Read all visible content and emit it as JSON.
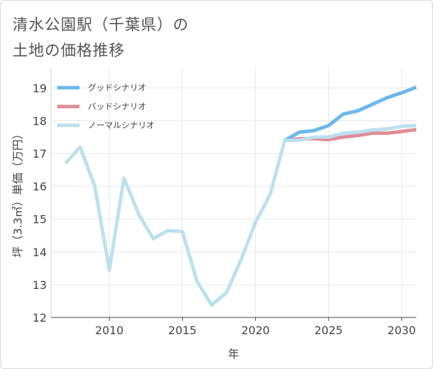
{
  "title": {
    "line1": "清水公園駅（千葉県）の",
    "line2": "土地の価格推移"
  },
  "chart_data": {
    "type": "line",
    "xlabel": "年",
    "ylabel": "坪（3.3㎡）単価（万円）",
    "xlim": [
      2006,
      2031
    ],
    "ylim": [
      12,
      19.6
    ],
    "x_ticks": [
      2010,
      2015,
      2020,
      2025,
      2030
    ],
    "y_ticks": [
      12,
      13,
      14,
      15,
      16,
      17,
      18,
      19
    ],
    "legend_position": "top-left",
    "series": [
      {
        "name": "グッドシナリオ",
        "color": "#6cb8ea",
        "x": [
          2022,
          2023,
          2024,
          2025,
          2026,
          2027,
          2028,
          2029,
          2030,
          2031
        ],
        "values": [
          17.4,
          17.65,
          17.7,
          17.85,
          18.2,
          18.3,
          18.5,
          18.7,
          18.85,
          19.02
        ]
      },
      {
        "name": "バッドシナリオ",
        "color": "#de8e98",
        "x": [
          2022,
          2023,
          2024,
          2025,
          2026,
          2027,
          2028,
          2029,
          2030,
          2031
        ],
        "values": [
          17.4,
          17.45,
          17.45,
          17.42,
          17.5,
          17.55,
          17.62,
          17.62,
          17.67,
          17.73
        ]
      },
      {
        "name": "ノーマルシナリオ",
        "color": "#bde0ee",
        "x": [
          2007,
          2008,
          2009,
          2010,
          2011,
          2012,
          2013,
          2014,
          2015,
          2016,
          2017,
          2018,
          2019,
          2020,
          2021,
          2022,
          2023,
          2024,
          2025,
          2026,
          2027,
          2028,
          2029,
          2030,
          2031
        ],
        "values": [
          16.7,
          17.2,
          16.0,
          13.45,
          16.25,
          15.15,
          14.4,
          14.65,
          14.62,
          13.1,
          12.38,
          12.75,
          13.75,
          14.9,
          15.75,
          17.4,
          17.4,
          17.5,
          17.5,
          17.62,
          17.65,
          17.72,
          17.75,
          17.83,
          17.85
        ]
      }
    ]
  }
}
